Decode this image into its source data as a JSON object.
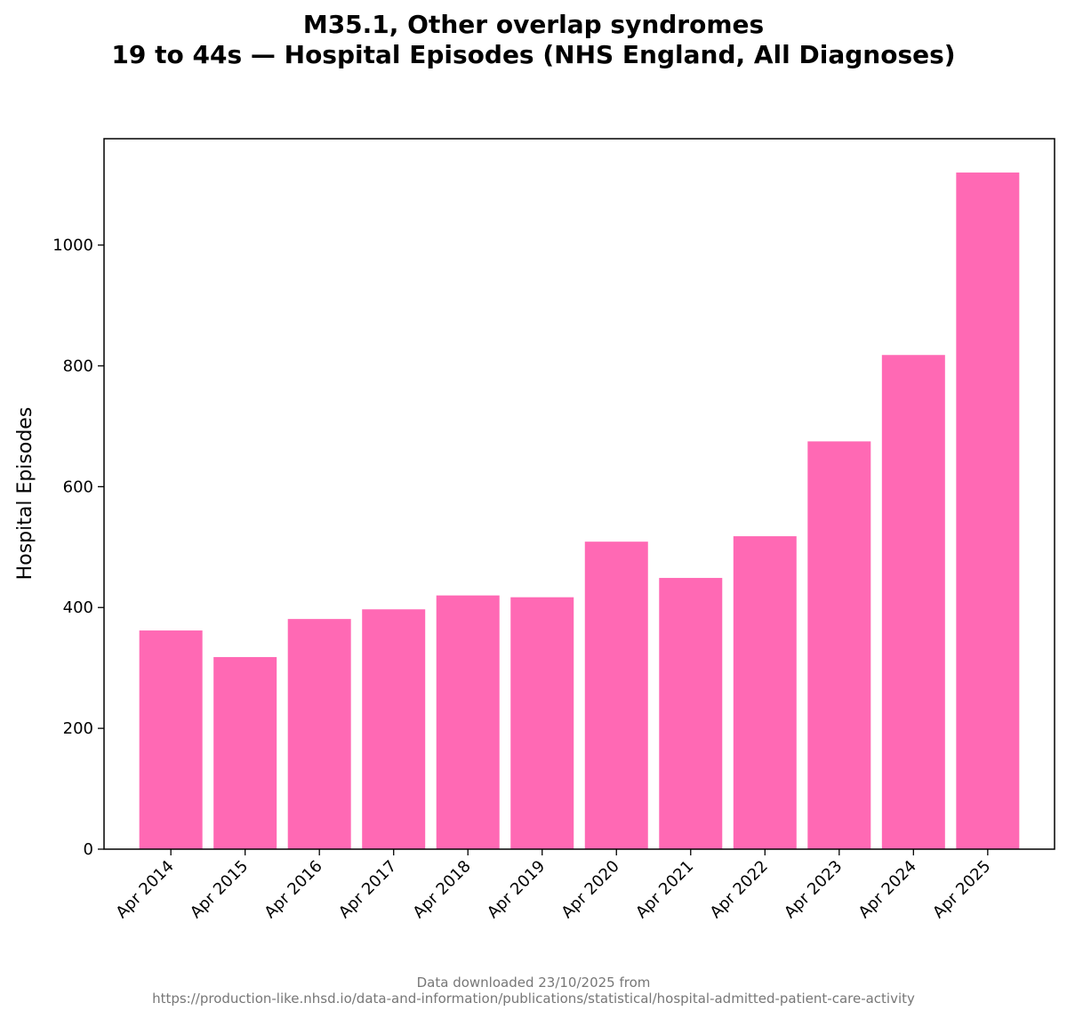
{
  "chart_data": {
    "type": "bar",
    "title": "M35.1, Other overlap syndromes",
    "subtitle": "19 to 44s — Hospital Episodes (NHS England, All Diagnoses)",
    "xlabel": "",
    "ylabel": "Hospital Episodes",
    "categories": [
      "Apr 2014",
      "Apr 2015",
      "Apr 2016",
      "Apr 2017",
      "Apr 2018",
      "Apr 2019",
      "Apr 2020",
      "Apr 2021",
      "Apr 2022",
      "Apr 2023",
      "Apr 2024",
      "Apr 2025"
    ],
    "values": [
      362,
      318,
      381,
      397,
      420,
      417,
      509,
      449,
      518,
      675,
      818,
      1120
    ],
    "ylim": [
      0,
      1176
    ],
    "yticks": [
      0,
      200,
      400,
      600,
      800,
      1000
    ],
    "grid": false,
    "bar_color": "#ff69b4"
  },
  "footer": {
    "line1": "Data downloaded 23/10/2025 from",
    "line2": "https://production-like.nhsd.io/data-and-information/publications/statistical/hospital-admitted-patient-care-activity"
  }
}
